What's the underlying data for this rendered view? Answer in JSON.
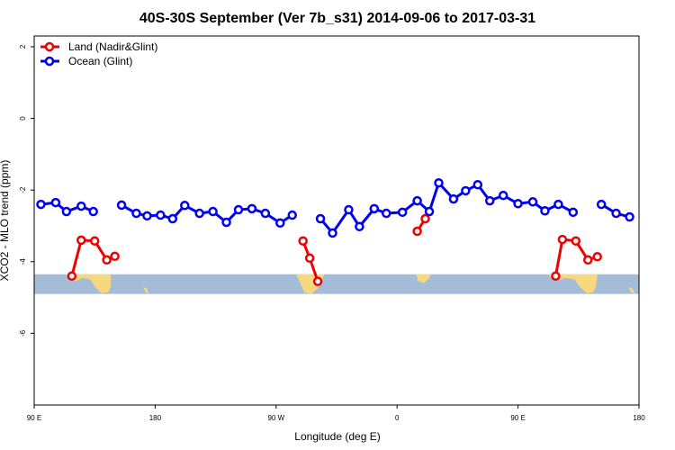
{
  "chart_data": {
    "type": "line",
    "title": "40S-30S September (Ver 7b_s31)   2014-09-06 to 2017-03-31",
    "xlabel": "Longitude (deg E)",
    "ylabel": "XCO2 - MLO trend (ppm)",
    "xlim": [
      90,
      540
    ],
    "ylim": [
      -8,
      2.3
    ],
    "x_ticks": [
      {
        "value": 90,
        "label": "90 E"
      },
      {
        "value": 180,
        "label": "180"
      },
      {
        "value": 270,
        "label": "90 W"
      },
      {
        "value": 360,
        "label": "0"
      },
      {
        "value": 450,
        "label": "90 E"
      },
      {
        "value": 540,
        "label": "180"
      }
    ],
    "y_ticks": [
      {
        "value": 2,
        "label": "2"
      },
      {
        "value": 0,
        "label": "0"
      },
      {
        "value": -2,
        "label": "-2"
      },
      {
        "value": -4,
        "label": "-4"
      },
      {
        "value": -6,
        "label": "-6"
      }
    ],
    "legend": {
      "position": "top-left"
    },
    "map_strip": {
      "ymin": -4.9,
      "ymax": -4.35,
      "ocean_color": "#a5bcd9",
      "land_color": "#f6d87e"
    },
    "series": [
      {
        "name": "Land (Nadir&Glint)",
        "color": "#ee0000",
        "segments": [
          [
            [
              118,
              -4.4
            ],
            [
              125,
              -3.4
            ],
            [
              135,
              -3.42
            ],
            [
              144,
              -3.95
            ],
            [
              150,
              -3.85
            ]
          ],
          [
            [
              290,
              -3.42
            ],
            [
              295,
              -3.9
            ],
            [
              301,
              -4.55
            ]
          ],
          [
            [
              375,
              -3.15
            ],
            [
              381,
              -2.8
            ]
          ],
          [
            [
              478,
              -4.4
            ],
            [
              483,
              -3.38
            ],
            [
              493,
              -3.42
            ],
            [
              502,
              -3.95
            ],
            [
              509,
              -3.86
            ]
          ]
        ]
      },
      {
        "name": "Ocean (Glint)",
        "color": "#0000ee",
        "segments": [
          [
            [
              95,
              -2.4
            ],
            [
              106,
              -2.35
            ],
            [
              114,
              -2.6
            ],
            [
              125,
              -2.45
            ],
            [
              134,
              -2.6
            ]
          ],
          [
            [
              155,
              -2.42
            ],
            [
              166,
              -2.65
            ],
            [
              174,
              -2.72
            ],
            [
              184,
              -2.7
            ],
            [
              193,
              -2.8
            ],
            [
              202,
              -2.43
            ],
            [
              213,
              -2.65
            ],
            [
              223,
              -2.6
            ],
            [
              233,
              -2.9
            ],
            [
              242,
              -2.55
            ],
            [
              252,
              -2.52
            ],
            [
              262,
              -2.65
            ],
            [
              273,
              -2.92
            ],
            [
              282,
              -2.7
            ]
          ],
          [
            [
              303,
              -2.8
            ],
            [
              312,
              -3.2
            ],
            [
              324,
              -2.55
            ],
            [
              332,
              -3.02
            ],
            [
              343,
              -2.52
            ],
            [
              352,
              -2.65
            ],
            [
              364,
              -2.62
            ],
            [
              375,
              -2.3
            ],
            [
              384,
              -2.6
            ],
            [
              391,
              -1.8
            ],
            [
              402,
              -2.25
            ],
            [
              411,
              -2.02
            ],
            [
              420,
              -1.85
            ],
            [
              429,
              -2.3
            ],
            [
              439,
              -2.15
            ],
            [
              450,
              -2.38
            ],
            [
              461,
              -2.33
            ],
            [
              470,
              -2.58
            ],
            [
              480,
              -2.4
            ],
            [
              491,
              -2.62
            ]
          ],
          [
            [
              512,
              -2.4
            ],
            [
              523,
              -2.65
            ],
            [
              533,
              -2.75
            ]
          ]
        ]
      }
    ]
  }
}
